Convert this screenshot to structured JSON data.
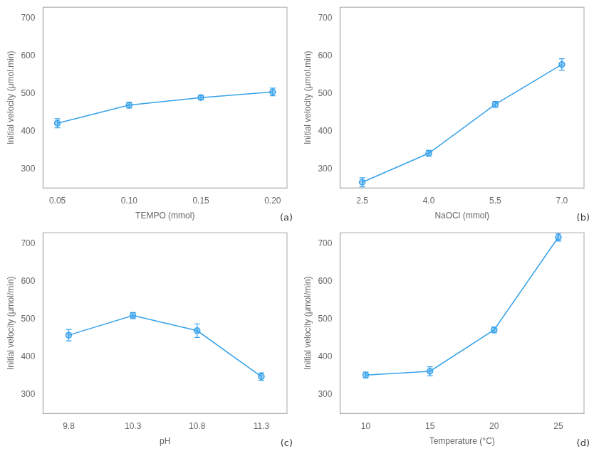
{
  "chart_data": [
    {
      "type": "line",
      "x": [
        0.05,
        0.1,
        0.15,
        0.2
      ],
      "values": [
        422,
        470,
        490,
        505
      ],
      "yerr": [
        12,
        8,
        6,
        10
      ],
      "xlabel": "TEMPO (mmol)",
      "ylabel": "Initial velocity (μmol.min)",
      "annotation": "(a)",
      "xlim": [
        0.04,
        0.21
      ],
      "xticks": [
        0.05,
        {
          "value": 0.1,
          "label": "0.10"
        },
        0.15,
        {
          "value": 0.2,
          "label": "0.20"
        }
      ],
      "ylim": [
        250,
        730
      ],
      "yticks": [
        300,
        400,
        500,
        600,
        700
      ],
      "marker": "circle",
      "line_style": "solid",
      "grid": false
    },
    {
      "type": "line",
      "x": [
        2.5,
        4.0,
        5.5,
        7.0
      ],
      "values": [
        265,
        342,
        472,
        578
      ],
      "yerr": [
        12,
        8,
        8,
        15
      ],
      "xlabel": "NaOCl (mmol)",
      "ylabel": "Initial velocity (μmol.min)",
      "annotation": "(b)",
      "xlim": [
        2,
        7.5
      ],
      "xticks": [
        2.5,
        {
          "value": 4,
          "label": "4.0"
        },
        5.5,
        {
          "value": 7,
          "label": "7.0"
        }
      ],
      "ylim": [
        250,
        730
      ],
      "yticks": [
        300,
        400,
        500,
        600,
        700
      ],
      "marker": "circle",
      "line_style": "solid",
      "grid": false
    },
    {
      "type": "line",
      "x": [
        9.8,
        10.3,
        10.8,
        11.3
      ],
      "values": [
        458,
        510,
        470,
        348
      ],
      "yerr": [
        15,
        8,
        18,
        10
      ],
      "xlabel": "pH",
      "ylabel": "Initial velocity (μmol/min)",
      "annotation": "(c)",
      "xlim": [
        9.6,
        11.5
      ],
      "xticks": [
        9.8,
        10.3,
        10.8,
        11.3
      ],
      "ylim": [
        250,
        730
      ],
      "yticks": [
        300,
        400,
        500,
        600,
        700
      ],
      "marker": "circle",
      "line_style": "solid",
      "grid": false
    },
    {
      "type": "line",
      "x": [
        10,
        15,
        20,
        25
      ],
      "values": [
        352,
        362,
        472,
        718
      ],
      "yerr": [
        8,
        12,
        8,
        10
      ],
      "xlabel": "Temperature (°C)",
      "ylabel": "Initial velocity (μmol/min)",
      "annotation": "(d)",
      "xlim": [
        8,
        27
      ],
      "xticks": [
        10,
        15,
        20,
        25
      ],
      "ylim": [
        250,
        730
      ],
      "yticks": [
        300,
        400,
        500,
        600,
        700
      ],
      "marker": "circle",
      "line_style": "solid",
      "grid": false
    }
  ]
}
